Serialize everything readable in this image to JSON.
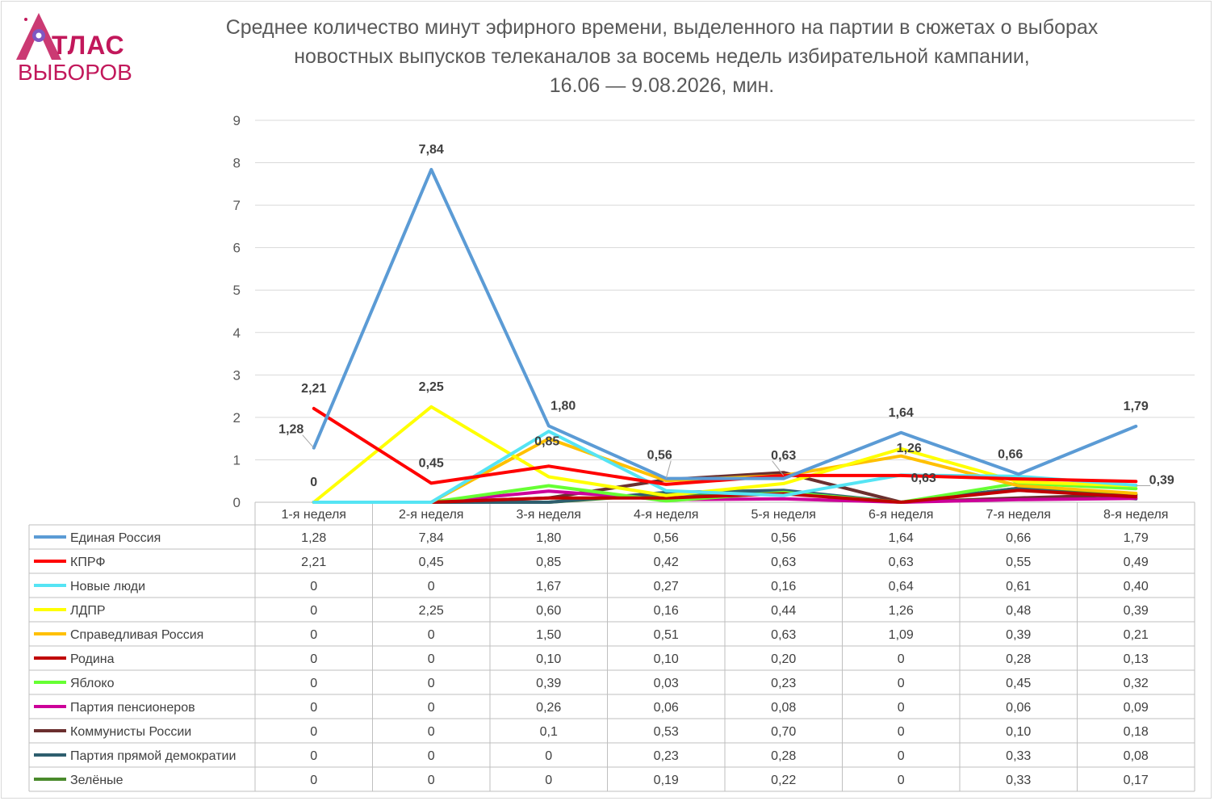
{
  "logo": {
    "line1": "ТЛАС",
    "line2": "ВЫБОРОВ"
  },
  "title_lines": [
    "Среднее количество минут эфирного времени, выделенного на партии в сюжетах о выборах",
    "новостных выпусков телеканалов за восемь недель избирательной кампании,",
    "16.06 — 9.08.2026, мин."
  ],
  "chart_data": {
    "type": "line",
    "title": "Среднее количество минут эфирного времени, выделенного на партии в сюжетах о выборах новостных выпусков телеканалов за восемь недель избирательной кампании, 16.06 — 9.08.2026, мин.",
    "categories": [
      "1-я неделя",
      "2-я неделя",
      "3-я неделя",
      "4-я неделя",
      "5-я неделя",
      "6-я неделя",
      "7-я неделя",
      "8-я неделя"
    ],
    "ylim": [
      0,
      9
    ],
    "yticks": [
      0,
      1,
      2,
      3,
      4,
      5,
      6,
      7,
      8,
      9
    ],
    "grid": true,
    "legend": "data-table-below",
    "series": [
      {
        "name": "Единая Россия",
        "color": "#5b9bd5",
        "values": [
          1.28,
          7.84,
          1.8,
          0.56,
          0.56,
          1.64,
          0.66,
          1.79
        ],
        "table": [
          "1,28",
          "7,84",
          "1,80",
          "0,56",
          "0,56",
          "1,64",
          "0,66",
          "1,79"
        ]
      },
      {
        "name": "КПРФ",
        "color": "#ff0000",
        "values": [
          2.21,
          0.45,
          0.85,
          0.42,
          0.63,
          0.63,
          0.55,
          0.49
        ],
        "table": [
          "2,21",
          "0,45",
          "0,85",
          "0,42",
          "0,63",
          "0,63",
          "0,55",
          "0,49"
        ]
      },
      {
        "name": "Новые люди",
        "color": "#55e4f4",
        "values": [
          0,
          0,
          1.67,
          0.27,
          0.16,
          0.64,
          0.61,
          0.4
        ],
        "table": [
          "0",
          "0",
          "1,67",
          "0,27",
          "0,16",
          "0,64",
          "0,61",
          "0,40"
        ]
      },
      {
        "name": "ЛДПР",
        "color": "#ffff00",
        "values": [
          0,
          2.25,
          0.6,
          0.16,
          0.44,
          1.26,
          0.48,
          0.39
        ],
        "table": [
          "0",
          "2,25",
          "0,60",
          "0,16",
          "0,44",
          "1,26",
          "0,48",
          "0,39"
        ]
      },
      {
        "name": "Справедливая Россия",
        "color": "#ffc000",
        "values": [
          0,
          0,
          1.5,
          0.51,
          0.63,
          1.09,
          0.39,
          0.21
        ],
        "table": [
          "0",
          "0",
          "1,50",
          "0,51",
          "0,63",
          "1,09",
          "0,39",
          "0,21"
        ]
      },
      {
        "name": "Родина",
        "color": "#c00000",
        "values": [
          0,
          0,
          0.1,
          0.1,
          0.2,
          0,
          0.28,
          0.13
        ],
        "table": [
          "0",
          "0",
          "0,10",
          "0,10",
          "0,20",
          "0",
          "0,28",
          "0,13"
        ]
      },
      {
        "name": "Яблоко",
        "color": "#66ff33",
        "values": [
          0,
          0,
          0.39,
          0.03,
          0.23,
          0,
          0.45,
          0.32
        ],
        "table": [
          "0",
          "0",
          "0,39",
          "0,03",
          "0,23",
          "0",
          "0,45",
          "0,32"
        ]
      },
      {
        "name": "Партия пенсионеров",
        "color": "#cc0099",
        "values": [
          0,
          0,
          0.26,
          0.06,
          0.08,
          0,
          0.06,
          0.09
        ],
        "table": [
          "0",
          "0",
          "0,26",
          "0,06",
          "0,08",
          "0",
          "0,06",
          "0,09"
        ]
      },
      {
        "name": "Коммунисты России",
        "color": "#6b2f2f",
        "values": [
          0,
          0,
          0.1,
          0.53,
          0.7,
          0,
          0.1,
          0.18
        ],
        "table": [
          "0",
          "0",
          "0,1",
          "0,53",
          "0,70",
          "0",
          "0,10",
          "0,18"
        ]
      },
      {
        "name": "Партия прямой демократии",
        "color": "#2e5e6e",
        "values": [
          0,
          0,
          0,
          0.23,
          0.28,
          0,
          0.33,
          0.08
        ],
        "table": [
          "0",
          "0",
          "0",
          "0,23",
          "0,28",
          "0",
          "0,33",
          "0,08"
        ]
      },
      {
        "name": "Зелёные",
        "color": "#4a8a2c",
        "values": [
          0,
          0,
          0,
          0.19,
          0.22,
          0,
          0.33,
          0.17
        ],
        "table": [
          "0",
          "0",
          "0",
          "0,19",
          "0,22",
          "0",
          "0,33",
          "0,17"
        ]
      }
    ],
    "annotations": [
      {
        "text": "1,28",
        "series": "Единая Россия",
        "index": 0
      },
      {
        "text": "7,84",
        "series": "Единая Россия",
        "index": 1
      },
      {
        "text": "1,80",
        "series": "Единая Россия",
        "index": 2
      },
      {
        "text": "0,56",
        "series": "Единая Россия",
        "index": 3
      },
      {
        "text": "1,64",
        "series": "Единая Россия",
        "index": 5
      },
      {
        "text": "0,66",
        "series": "Единая Россия",
        "index": 6
      },
      {
        "text": "1,79",
        "series": "Единая Россия",
        "index": 7
      },
      {
        "text": "2,21",
        "series": "КПРФ",
        "index": 0
      },
      {
        "text": "0,45",
        "series": "КПРФ",
        "index": 1
      },
      {
        "text": "0,63",
        "series": "КПРФ",
        "index": 4
      },
      {
        "text": "0,63",
        "series": "КПРФ",
        "index": 5
      },
      {
        "text": "0,39",
        "series": "ЛДПР",
        "index": 7
      },
      {
        "text": "2,25",
        "series": "ЛДПР",
        "index": 1
      },
      {
        "text": "1,26",
        "series": "ЛДПР",
        "index": 5
      },
      {
        "text": "0,85",
        "series": "КПРФ",
        "index": 2
      },
      {
        "text": "0",
        "series": "Новые люди",
        "index": 0
      }
    ]
  }
}
